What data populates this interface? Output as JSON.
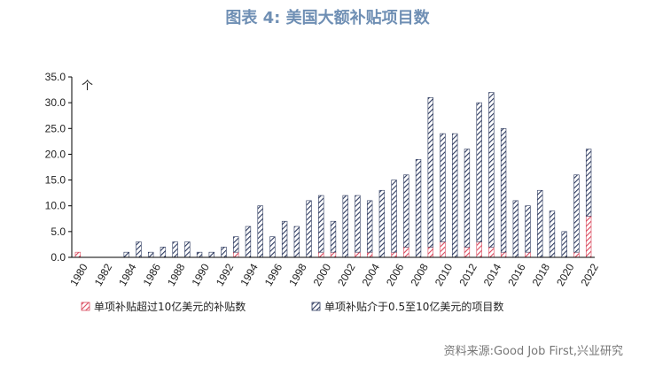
{
  "title": "图表 4:  美国大额补贴项目数",
  "source": "资料来源:Good Job First,兴业研究",
  "colors": {
    "large": "#d9475b",
    "mid": "#2d3a5f",
    "axis": "#000000"
  },
  "chart_data": {
    "type": "bar",
    "stacked": true,
    "unit_label": "个",
    "ylim": [
      0,
      35
    ],
    "yticks": [
      "0.0",
      "5.0",
      "10.0",
      "15.0",
      "20.0",
      "25.0",
      "30.0",
      "35.0"
    ],
    "categories": [
      "1980",
      "1981",
      "1982",
      "1983",
      "1984",
      "1985",
      "1986",
      "1987",
      "1988",
      "1989",
      "1990",
      "1991",
      "1992",
      "1993",
      "1994",
      "1995",
      "1996",
      "1997",
      "1998",
      "1999",
      "2000",
      "2001",
      "2002",
      "2003",
      "2004",
      "2005",
      "2006",
      "2007",
      "2008",
      "2009",
      "2010",
      "2011",
      "2012",
      "2013",
      "2014",
      "2015",
      "2016",
      "2017",
      "2018",
      "2019",
      "2020",
      "2021",
      "2022"
    ],
    "xtick_labels": [
      "1980",
      "1982",
      "1984",
      "1986",
      "1988",
      "1990",
      "1992",
      "1994",
      "1996",
      "1998",
      "2000",
      "2002",
      "2004",
      "2006",
      "2008",
      "2010",
      "2012",
      "2014",
      "2016",
      "2018",
      "2020",
      "2022"
    ],
    "series": [
      {
        "name": "单项补贴超过10亿美元的补贴数",
        "values": [
          1,
          0,
          0,
          0,
          0,
          0,
          0,
          0,
          0,
          0,
          0,
          0,
          0,
          1,
          0,
          0,
          0,
          0,
          0,
          0,
          1,
          1,
          0,
          1,
          1,
          0,
          1,
          2,
          0,
          2,
          3,
          0,
          2,
          3,
          2,
          1,
          0,
          1,
          0,
          0,
          0,
          1,
          8
        ]
      },
      {
        "name": "单项补贴介于0.5至10亿美元的项目数",
        "values": [
          0,
          0,
          0,
          0,
          1,
          3,
          1,
          2,
          3,
          3,
          1,
          1,
          2,
          3,
          6,
          10,
          4,
          7,
          6,
          11,
          11,
          6,
          12,
          11,
          10,
          13,
          14,
          14,
          19,
          29,
          21,
          24,
          19,
          27,
          30,
          24,
          11,
          9,
          13,
          9,
          5,
          15,
          13
        ]
      }
    ]
  }
}
